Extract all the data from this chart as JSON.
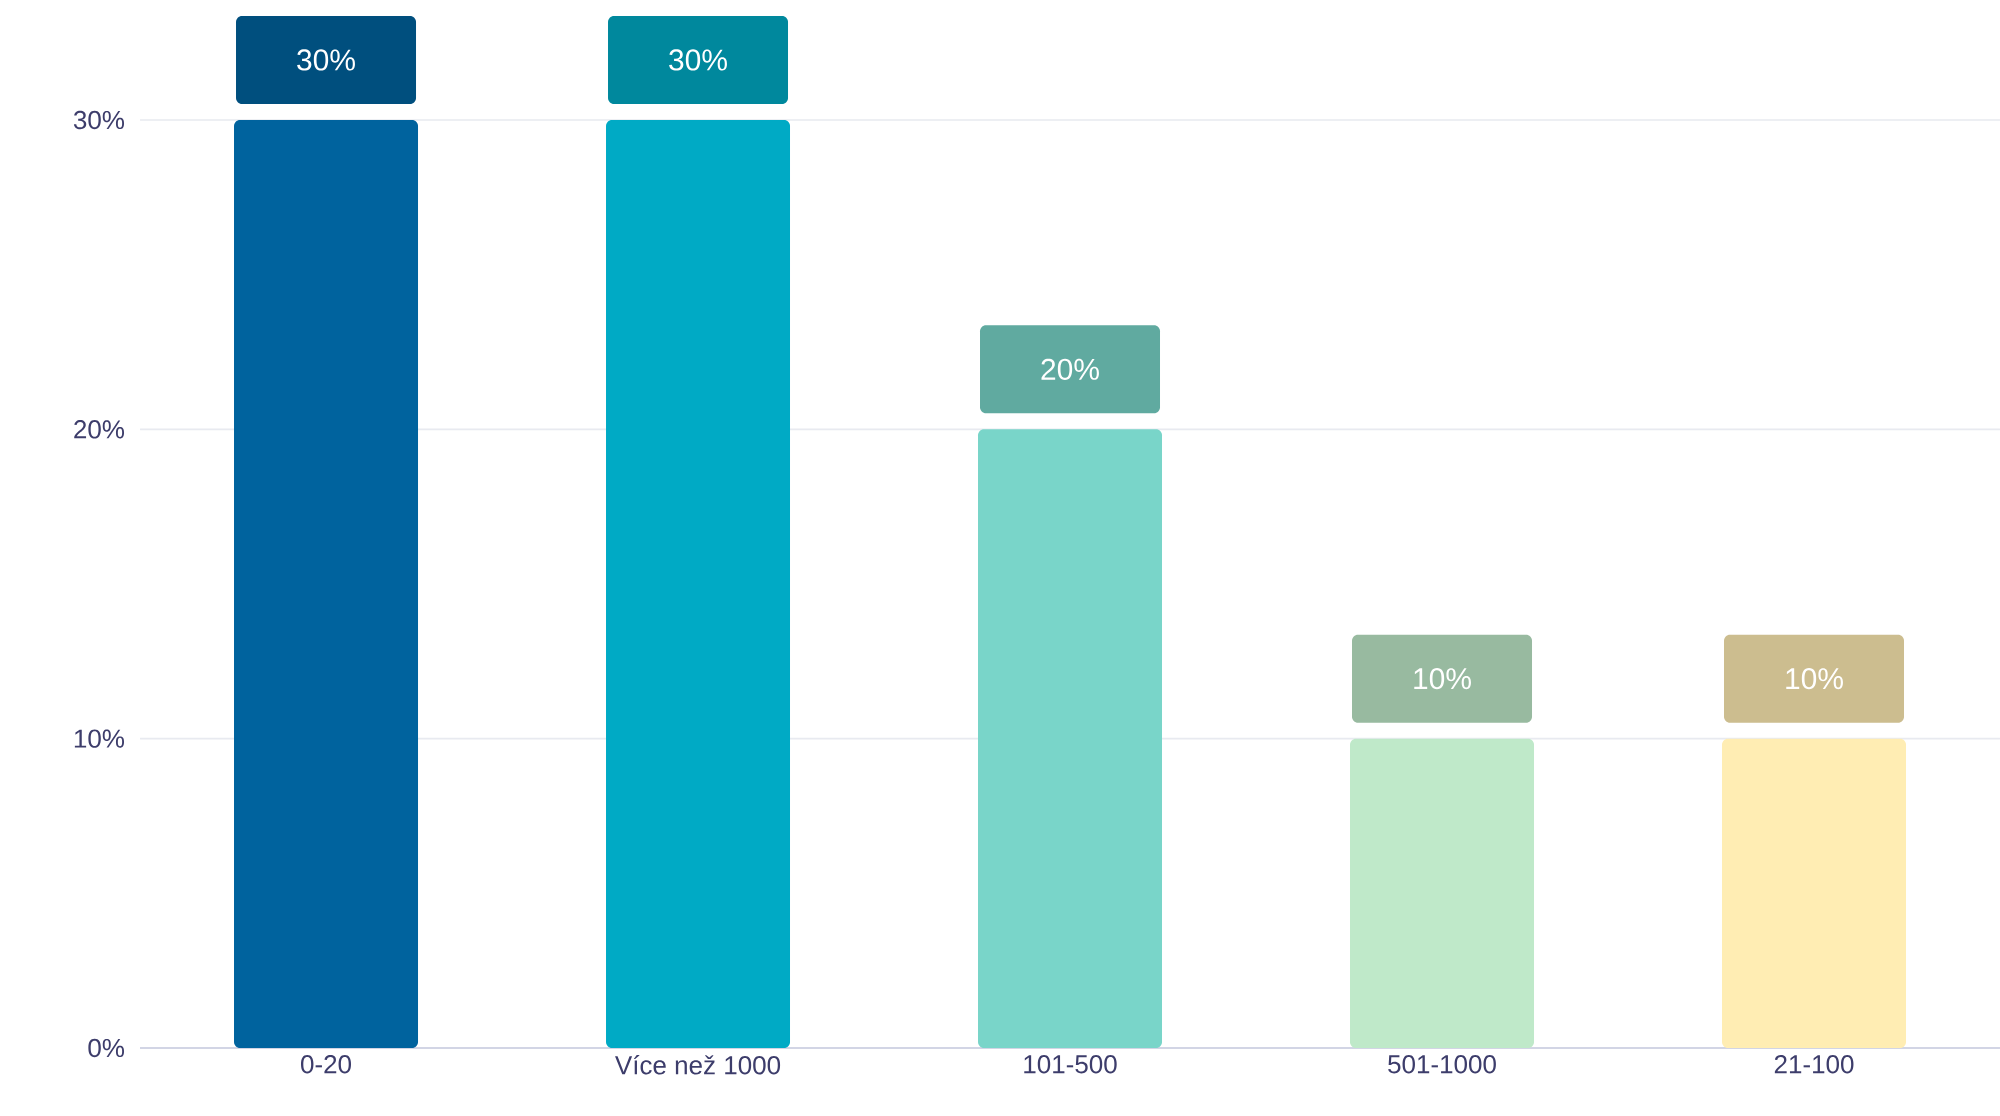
{
  "chart_data": {
    "type": "bar",
    "categories": [
      "0-20",
      "Více než 1000",
      "101-500",
      "501-1000",
      "21-100"
    ],
    "values": [
      30,
      30,
      20,
      10,
      10
    ],
    "colors": [
      "#00639e",
      "#00aac5",
      "#79d5c9",
      "#bfe9c9",
      "#ffedb3"
    ],
    "value_labels": [
      "30%",
      "30%",
      "20%",
      "10%",
      "10%"
    ],
    "ylim": [
      0,
      30
    ],
    "yticks": [
      {
        "value": 0,
        "label": "0%"
      },
      {
        "value": 10,
        "label": "10%"
      },
      {
        "value": 20,
        "label": "20%"
      },
      {
        "value": 30,
        "label": "30%"
      }
    ],
    "grid": "y"
  }
}
